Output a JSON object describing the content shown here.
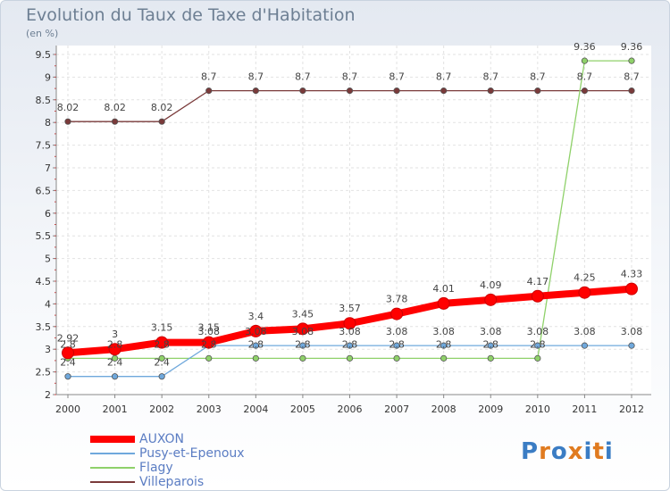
{
  "title": "Evolution du Taux de Taxe d'Habitation",
  "unit_label": "(en %)",
  "logo_text": "Proxiti",
  "chart_data": {
    "type": "line",
    "title": "Evolution du Taux de Taxe d'Habitation",
    "ylabel": "(en %)",
    "xlabel": "",
    "x": [
      "2000",
      "2001",
      "2002",
      "2003",
      "2004",
      "2005",
      "2006",
      "2007",
      "2008",
      "2009",
      "2010",
      "2011",
      "2012"
    ],
    "ylim": [
      2,
      9.5
    ],
    "yticks": [
      "2",
      "2.5",
      "3",
      "3.5",
      "4",
      "4.5",
      "5",
      "5.5",
      "6",
      "6.5",
      "7",
      "7.5",
      "8",
      "8.5",
      "9",
      "9.5"
    ],
    "grid": true,
    "legend_position": "bottom-left",
    "series": [
      {
        "name": "AUXON",
        "color": "#ff0000",
        "values": [
          2.92,
          3,
          3.15,
          3.15,
          3.4,
          3.45,
          3.57,
          3.78,
          4.01,
          4.09,
          4.17,
          4.25,
          4.33
        ],
        "labels": [
          "2.92",
          "3",
          "3.15",
          "3.15",
          "3.4",
          "3.45",
          "3.57",
          "3.78",
          "4.01",
          "4.09",
          "4.17",
          "4.25",
          "4.33"
        ]
      },
      {
        "name": "Pusy-et-Epenoux",
        "color": "#6fa8dc",
        "values": [
          2.4,
          2.4,
          2.4,
          3.08,
          3.08,
          3.08,
          3.08,
          3.08,
          3.08,
          3.08,
          3.08,
          3.08,
          3.08
        ],
        "labels": [
          "2.4",
          "2.4",
          "2.4",
          "3.08",
          "3.08",
          "3.08",
          "3.08",
          "3.08",
          "3.08",
          "3.08",
          "3.08",
          "3.08",
          "3.08"
        ]
      },
      {
        "name": "Flagy",
        "color": "#8fd16a",
        "values": [
          2.8,
          2.8,
          2.8,
          2.8,
          2.8,
          2.8,
          2.8,
          2.8,
          2.8,
          2.8,
          2.8,
          9.36,
          9.36
        ],
        "labels": [
          "2.8",
          "2.8",
          "2.8",
          "2.8",
          "2.8",
          "2.8",
          "2.8",
          "2.8",
          "2.8",
          "2.8",
          "2.8",
          "9.36",
          "9.36"
        ]
      },
      {
        "name": "Villeparois",
        "color": "#7a3a3a",
        "values": [
          8.02,
          8.02,
          8.02,
          8.7,
          8.7,
          8.7,
          8.7,
          8.7,
          8.7,
          8.7,
          8.7,
          8.7,
          8.7
        ],
        "labels": [
          "8.02",
          "8.02",
          "8.02",
          "8.7",
          "8.7",
          "8.7",
          "8.7",
          "8.7",
          "8.7",
          "8.7",
          "8.7",
          "8.7",
          "8.7"
        ]
      }
    ]
  }
}
